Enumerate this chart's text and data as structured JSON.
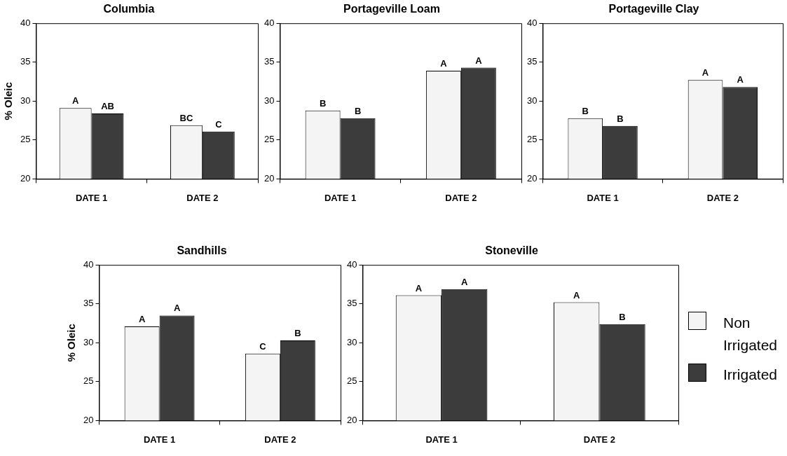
{
  "chart_data": [
    {
      "type": "bar",
      "title": "Columbia",
      "ylabel": "% Oleic",
      "categories": [
        "DATE 1",
        "DATE 2"
      ],
      "ylim": [
        20,
        40
      ],
      "yticks": [
        20,
        25,
        30,
        35,
        40
      ],
      "series": [
        {
          "color": "#f4f4f4",
          "values": [
            29.1,
            26.9
          ],
          "value_labels": [
            "A",
            "BC"
          ]
        },
        {
          "color": "#3c3c3c",
          "values": [
            28.4,
            26.1
          ],
          "value_labels": [
            "AB",
            "C"
          ]
        }
      ]
    },
    {
      "type": "bar",
      "title": "Portageville Loam",
      "categories": [
        "DATE 1",
        "DATE 2"
      ],
      "ylim": [
        20,
        40
      ],
      "yticks": [
        20,
        25,
        30,
        35,
        40
      ],
      "series": [
        {
          "color": "#f4f4f4",
          "values": [
            28.8,
            33.9
          ],
          "value_labels": [
            "B",
            "A"
          ]
        },
        {
          "color": "#3c3c3c",
          "values": [
            27.8,
            34.3
          ],
          "value_labels": [
            "B",
            "A"
          ]
        }
      ]
    },
    {
      "type": "bar",
      "title": "Portageville Clay",
      "categories": [
        "DATE 1",
        "DATE 2"
      ],
      "ylim": [
        20,
        40
      ],
      "yticks": [
        20,
        25,
        30,
        35,
        40
      ],
      "series": [
        {
          "color": "#f4f4f4",
          "values": [
            27.8,
            32.7
          ],
          "value_labels": [
            "B",
            "A"
          ]
        },
        {
          "color": "#3c3c3c",
          "values": [
            26.8,
            31.8
          ],
          "value_labels": [
            "B",
            "A"
          ]
        }
      ]
    },
    {
      "type": "bar",
      "title": "Sandhills",
      "ylabel": "% Oleic",
      "categories": [
        "DATE 1",
        "DATE 2"
      ],
      "ylim": [
        20,
        40
      ],
      "yticks": [
        20,
        25,
        30,
        35,
        40
      ],
      "series": [
        {
          "color": "#f4f4f4",
          "values": [
            32.1,
            28.6
          ],
          "value_labels": [
            "A",
            "C"
          ]
        },
        {
          "color": "#3c3c3c",
          "values": [
            33.5,
            30.3
          ],
          "value_labels": [
            "A",
            "B"
          ]
        }
      ]
    },
    {
      "type": "bar",
      "title": "Stoneville",
      "categories": [
        "DATE 1",
        "DATE 2"
      ],
      "ylim": [
        20,
        40
      ],
      "yticks": [
        20,
        25,
        30,
        35,
        40
      ],
      "legend": "right",
      "series": [
        {
          "name": "Non Irrigated",
          "color": "#f4f4f4",
          "values": [
            36.1,
            35.2
          ],
          "value_labels": [
            "A",
            "A"
          ]
        },
        {
          "name": "Irrigated",
          "color": "#3c3c3c",
          "values": [
            36.9,
            32.4
          ],
          "value_labels": [
            "A",
            "B"
          ]
        }
      ]
    }
  ]
}
